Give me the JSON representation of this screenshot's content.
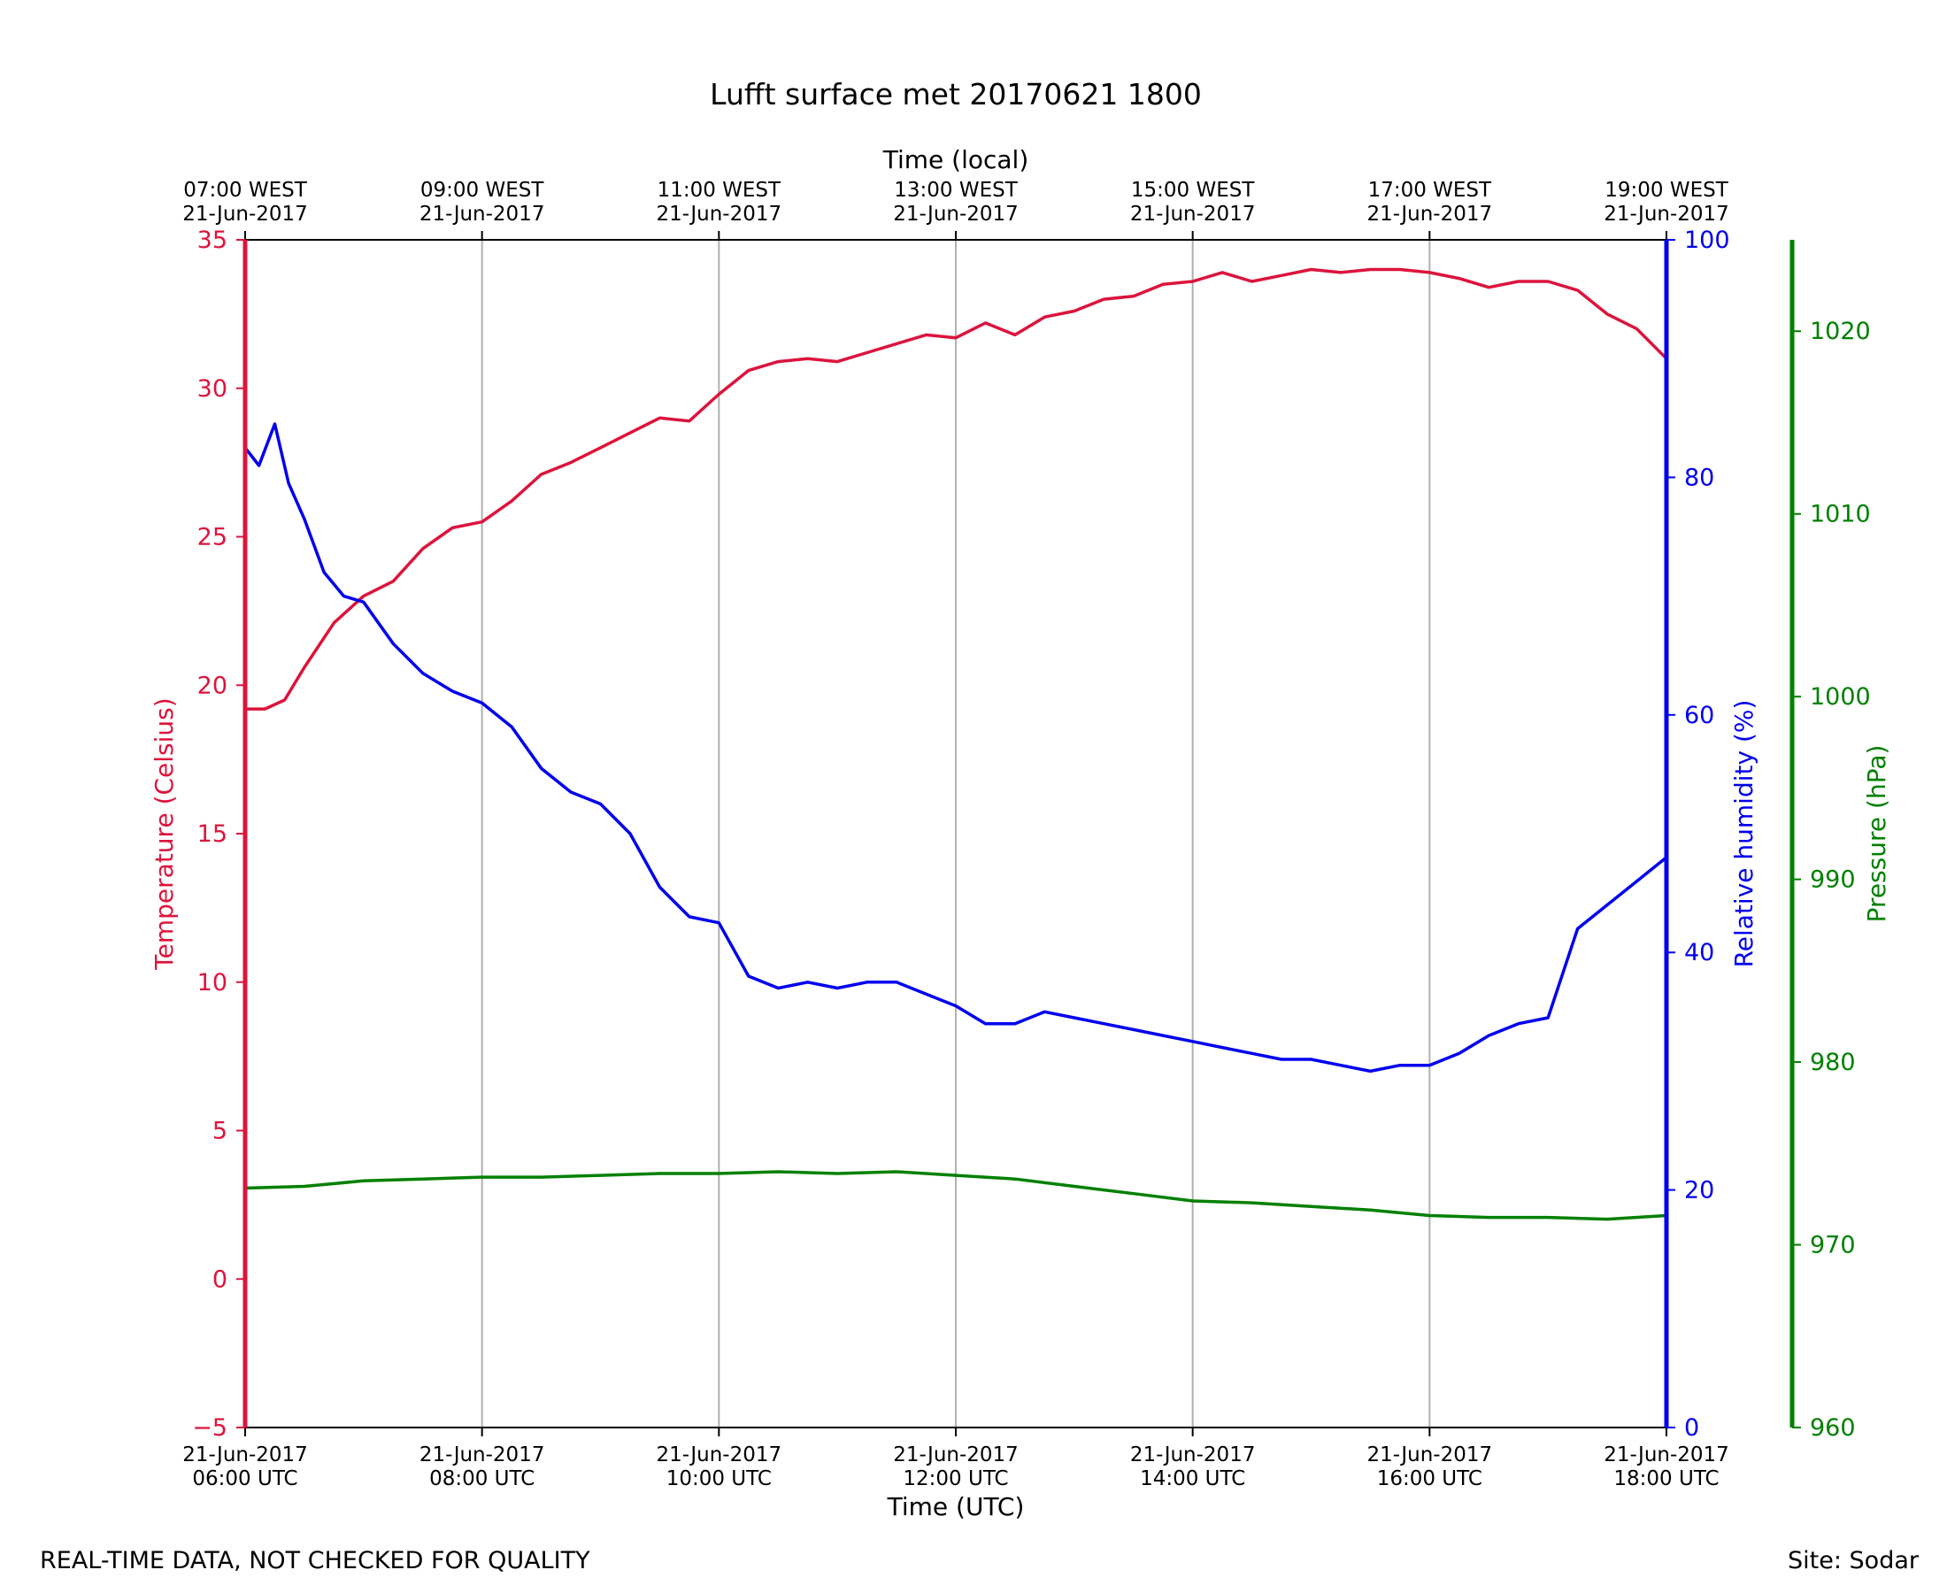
{
  "chart_data": {
    "type": "line",
    "title": "Lufft surface met 20170621 1800",
    "xlabel": "Time (UTC)",
    "x2label": "Time (local)",
    "x_range": [
      "2017-06-21T06:00Z",
      "2017-06-21T18:00Z"
    ],
    "x_ticks": [
      {
        "time": "2017-06-21T06:00Z",
        "line1": "21-Jun-2017",
        "line2": "06:00 UTC"
      },
      {
        "time": "2017-06-21T08:00Z",
        "line1": "21-Jun-2017",
        "line2": "08:00 UTC"
      },
      {
        "time": "2017-06-21T10:00Z",
        "line1": "21-Jun-2017",
        "line2": "10:00 UTC"
      },
      {
        "time": "2017-06-21T12:00Z",
        "line1": "21-Jun-2017",
        "line2": "12:00 UTC"
      },
      {
        "time": "2017-06-21T14:00Z",
        "line1": "21-Jun-2017",
        "line2": "14:00 UTC"
      },
      {
        "time": "2017-06-21T16:00Z",
        "line1": "21-Jun-2017",
        "line2": "16:00 UTC"
      },
      {
        "time": "2017-06-21T18:00Z",
        "line1": "21-Jun-2017",
        "line2": "18:00 UTC"
      }
    ],
    "x2_ticks": [
      {
        "line1": "07:00 WEST",
        "line2": "21-Jun-2017"
      },
      {
        "line1": "09:00 WEST",
        "line2": "21-Jun-2017"
      },
      {
        "line1": "11:00 WEST",
        "line2": "21-Jun-2017"
      },
      {
        "line1": "13:00 WEST",
        "line2": "21-Jun-2017"
      },
      {
        "line1": "15:00 WEST",
        "line2": "21-Jun-2017"
      },
      {
        "line1": "17:00 WEST",
        "line2": "21-Jun-2017"
      },
      {
        "line1": "19:00 WEST",
        "line2": "21-Jun-2017"
      }
    ],
    "grid": "vertical",
    "axes": {
      "temperature": {
        "label": "Temperature (Celsius)",
        "range": [
          -5,
          35
        ],
        "ticks": [
          -5,
          0,
          5,
          10,
          15,
          20,
          25,
          30,
          35
        ],
        "tick_labels": [
          "−5",
          "0",
          "5",
          "10",
          "15",
          "20",
          "25",
          "30",
          "35"
        ],
        "color": "#dc143c"
      },
      "humidity": {
        "label": "Relative humidity (%)",
        "range": [
          0,
          100
        ],
        "ticks": [
          0,
          20,
          40,
          60,
          80,
          100
        ],
        "tick_labels": [
          "0",
          "20",
          "40",
          "60",
          "80",
          "100"
        ],
        "color": "#0000ee"
      },
      "pressure": {
        "label": "Pressure (hPa)",
        "range": [
          960,
          1025
        ],
        "ticks": [
          960,
          970,
          980,
          990,
          1000,
          1010,
          1020
        ],
        "tick_labels": [
          "960",
          "970",
          "980",
          "990",
          "1000",
          "1010",
          "1020"
        ],
        "color": "#008000"
      }
    },
    "series": [
      {
        "axis": "temperature",
        "color": "#dc143c",
        "x": [
          "06:00",
          "06:10",
          "06:20",
          "06:30",
          "06:45",
          "07:00",
          "07:15",
          "07:30",
          "07:45",
          "08:00",
          "08:15",
          "08:30",
          "08:45",
          "09:00",
          "09:15",
          "09:30",
          "09:45",
          "10:00",
          "10:15",
          "10:30",
          "10:45",
          "11:00",
          "11:15",
          "11:30",
          "11:45",
          "12:00",
          "12:15",
          "12:30",
          "12:45",
          "13:00",
          "13:15",
          "13:30",
          "13:45",
          "14:00",
          "14:15",
          "14:30",
          "14:45",
          "15:00",
          "15:15",
          "15:30",
          "15:45",
          "16:00",
          "16:15",
          "16:30",
          "16:45",
          "17:00",
          "17:15",
          "17:30",
          "17:45",
          "18:00"
        ],
        "values": [
          19.2,
          19.2,
          19.5,
          20.6,
          22.1,
          23.0,
          23.5,
          24.6,
          25.3,
          25.5,
          26.2,
          27.1,
          27.5,
          28.0,
          28.5,
          29.0,
          28.9,
          29.8,
          30.6,
          30.9,
          31.0,
          30.9,
          31.2,
          31.5,
          31.8,
          31.7,
          32.2,
          31.8,
          32.4,
          32.6,
          33.0,
          33.1,
          33.5,
          33.6,
          33.9,
          33.6,
          33.8,
          34.0,
          33.9,
          34.0,
          34.0,
          33.9,
          33.7,
          33.4,
          33.6,
          33.6,
          33.3,
          32.5,
          32.0,
          31.0
        ]
      },
      {
        "axis": "humidity",
        "color": "#0000ee",
        "x": [
          "06:00",
          "06:07",
          "06:15",
          "06:22",
          "06:30",
          "06:40",
          "06:50",
          "07:00",
          "07:15",
          "07:30",
          "07:45",
          "08:00",
          "08:15",
          "08:30",
          "08:45",
          "09:00",
          "09:15",
          "09:30",
          "09:45",
          "10:00",
          "10:15",
          "10:30",
          "10:45",
          "11:00",
          "11:15",
          "11:30",
          "11:45",
          "12:00",
          "12:15",
          "12:30",
          "12:45",
          "13:00",
          "13:15",
          "13:30",
          "13:45",
          "14:00",
          "14:15",
          "14:30",
          "14:45",
          "15:00",
          "15:15",
          "15:30",
          "15:45",
          "16:00",
          "16:15",
          "16:30",
          "16:45",
          "17:00",
          "17:15",
          "17:30",
          "17:45",
          "18:00"
        ],
        "values": [
          82.5,
          81.0,
          84.5,
          79.5,
          76.5,
          72.0,
          70.0,
          69.5,
          66.0,
          63.5,
          62.0,
          61.0,
          59.0,
          55.5,
          53.5,
          52.5,
          50.0,
          45.5,
          43.0,
          42.5,
          38.0,
          37.0,
          37.5,
          37.0,
          37.5,
          37.5,
          36.5,
          35.5,
          34.0,
          34.0,
          35.0,
          34.5,
          34.0,
          33.5,
          33.0,
          32.5,
          32.0,
          31.5,
          31.0,
          31.0,
          30.5,
          30.0,
          30.5,
          30.5,
          31.5,
          33.0,
          34.0,
          34.5,
          42.0,
          44.0,
          46.0,
          48.0
        ]
      },
      {
        "axis": "pressure",
        "color": "#008000",
        "x": [
          "06:00",
          "06:30",
          "07:00",
          "07:30",
          "08:00",
          "08:30",
          "09:00",
          "09:30",
          "10:00",
          "10:30",
          "11:00",
          "11:30",
          "12:00",
          "12:30",
          "13:00",
          "13:30",
          "14:00",
          "14:30",
          "15:00",
          "15:30",
          "16:00",
          "16:30",
          "17:00",
          "17:30",
          "18:00"
        ],
        "values": [
          973.1,
          973.2,
          973.5,
          973.6,
          973.7,
          973.7,
          973.8,
          973.9,
          973.9,
          974.0,
          973.9,
          974.0,
          973.8,
          973.6,
          973.2,
          972.8,
          972.4,
          972.3,
          972.1,
          971.9,
          971.6,
          971.5,
          971.5,
          971.4,
          971.6
        ]
      }
    ]
  },
  "footer": {
    "left": "REAL-TIME DATA, NOT CHECKED FOR QUALITY",
    "right": "Site: Sodar"
  }
}
